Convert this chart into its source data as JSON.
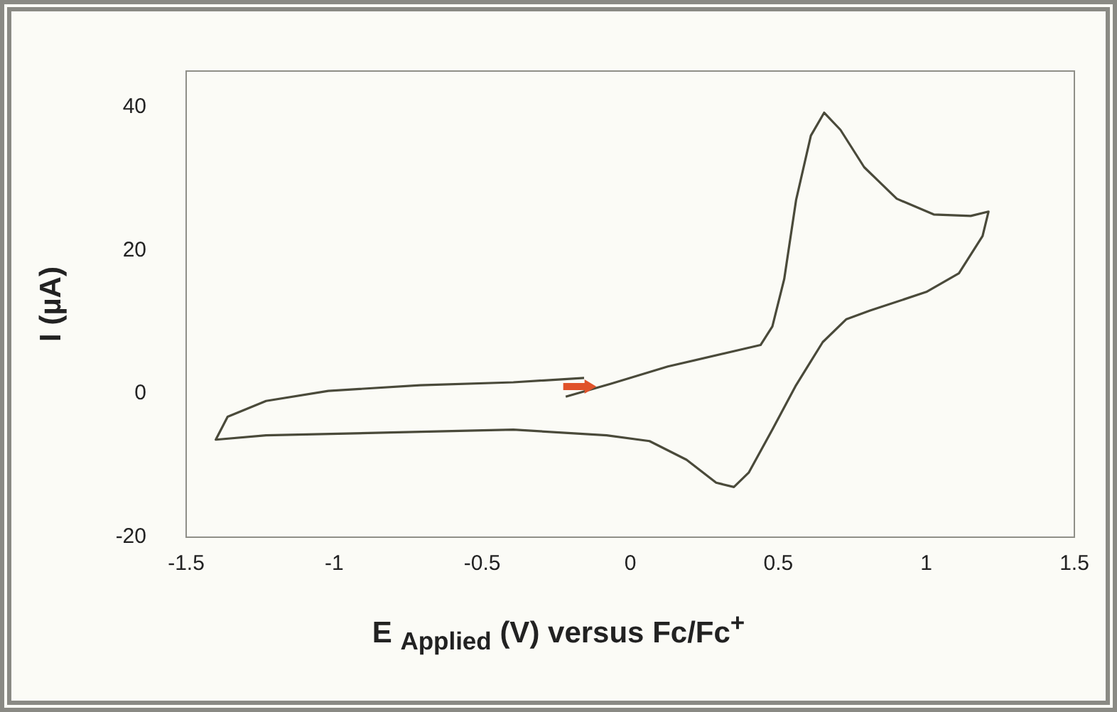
{
  "chart_data": {
    "type": "line",
    "xlabel": "E $_{Applied}$ (V) versus Fc/Fc$^{+}$",
    "ylabel": "I (µA)",
    "x": [
      -0.218,
      -0.065,
      0.127,
      0.44,
      0.48,
      0.52,
      0.56,
      0.61,
      0.655,
      0.71,
      0.79,
      0.9,
      1.025,
      1.15,
      1.21,
      1.19,
      1.11,
      1.0,
      0.81,
      0.73,
      0.65,
      0.56,
      0.48,
      0.4,
      0.35,
      0.29,
      0.19,
      0.065,
      -0.08,
      -0.395,
      -0.81,
      -1.23,
      -1.4,
      -1.36,
      -1.23,
      -1.02,
      -0.71,
      -0.395,
      -0.156
    ],
    "series": [
      {
        "color": "#4a4a3a",
        "values": [
          -0.4,
          1.4,
          3.8,
          6.8,
          9.4,
          16,
          27,
          36,
          39.2,
          36.8,
          31.6,
          27.2,
          25,
          24.8,
          25.4,
          22,
          16.8,
          14.2,
          11.6,
          10.4,
          7.2,
          1.2,
          -5,
          -11,
          -13,
          -12.4,
          -9.2,
          -6.6,
          -5.8,
          -5,
          -5.4,
          -5.8,
          -6.4,
          -3.2,
          -1,
          0.4,
          1.2,
          1.6,
          2.2
        ]
      }
    ],
    "xlim": [
      -1.5,
      1.5
    ],
    "xticks": [
      -1.5,
      -1,
      -0.5,
      0,
      0.5,
      1,
      1.5
    ],
    "ylim": [
      -20,
      45
    ],
    "yticks": [
      -20,
      0,
      20,
      40
    ],
    "grid": false,
    "legend": false,
    "marker": "none",
    "line_style": "solid"
  }
}
